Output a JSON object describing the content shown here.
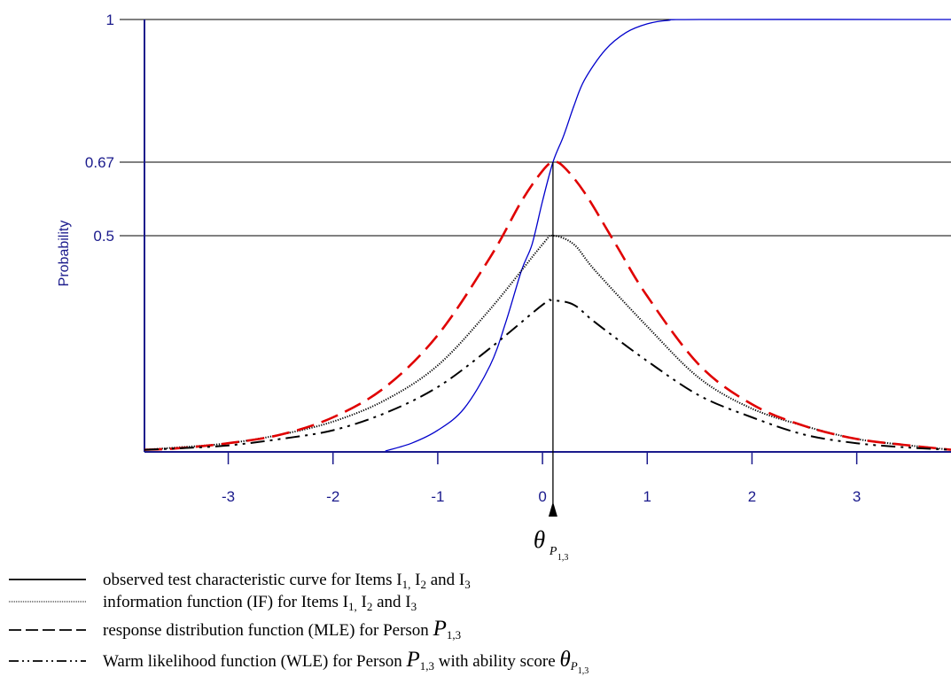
{
  "chart_data": {
    "type": "line",
    "ylabel": "Probability",
    "xlim": [
      -3.8,
      3.9
    ],
    "ylim": [
      0,
      1
    ],
    "x_ticks": [
      -3,
      -2,
      -1,
      0,
      1,
      2,
      3
    ],
    "x_tick_labels": [
      "-3",
      "-2",
      "-1",
      "0",
      "1",
      "2",
      "3"
    ],
    "y_tick_labels": [
      {
        "value": 0.5,
        "label": "0.5"
      },
      {
        "value": 0.67,
        "label": "0.67"
      },
      {
        "value": 1,
        "label": "1"
      }
    ],
    "reference_lines_y": [
      0.5,
      0.67,
      1
    ],
    "theta_marker_x": 0.1,
    "theta_marker_label": "θ",
    "theta_marker_sub": "P",
    "theta_marker_subsub": "1,3",
    "grid": false,
    "series": [
      {
        "key": "tcc",
        "color": "#0000cc",
        "style": "solid",
        "x": [
          -1.5,
          -1.25,
          -1.0,
          -0.75,
          -0.5,
          -0.35,
          -0.2,
          -0.1,
          0.0,
          0.1,
          0.2,
          0.3,
          0.4,
          0.6,
          0.8,
          1.0,
          1.2,
          1.5,
          3.9
        ],
        "y": [
          0.0,
          0.02,
          0.05,
          0.1,
          0.2,
          0.3,
          0.42,
          0.48,
          0.58,
          0.67,
          0.73,
          0.8,
          0.86,
          0.93,
          0.97,
          0.99,
          0.998,
          1.0,
          1.0
        ]
      },
      {
        "key": "if",
        "color": "#000000",
        "style": "dotted",
        "x": [
          -3.8,
          -3.5,
          -3.0,
          -2.5,
          -2.0,
          -1.5,
          -1.0,
          -0.5,
          0.0,
          0.1,
          0.3,
          0.5,
          1.0,
          1.5,
          2.0,
          2.5,
          3.0,
          3.5,
          3.9
        ],
        "y": [
          0.005,
          0.01,
          0.02,
          0.04,
          0.07,
          0.12,
          0.2,
          0.33,
          0.48,
          0.5,
          0.48,
          0.42,
          0.29,
          0.17,
          0.1,
          0.06,
          0.03,
          0.015,
          0.005
        ]
      },
      {
        "key": "mle",
        "color": "#e00000",
        "style": "dashed",
        "x": [
          -3.8,
          -3.5,
          -3.0,
          -2.5,
          -2.0,
          -1.5,
          -1.0,
          -0.5,
          -0.2,
          0.0,
          0.1,
          0.2,
          0.4,
          0.7,
          1.0,
          1.5,
          2.0,
          2.5,
          3.0,
          3.5,
          3.9
        ],
        "y": [
          0.005,
          0.008,
          0.02,
          0.04,
          0.08,
          0.15,
          0.27,
          0.45,
          0.58,
          0.65,
          0.67,
          0.66,
          0.6,
          0.48,
          0.36,
          0.2,
          0.11,
          0.06,
          0.03,
          0.015,
          0.005
        ]
      },
      {
        "key": "wle",
        "color": "#000000",
        "style": "dashdotdot",
        "x": [
          -3.8,
          -3.5,
          -3.0,
          -2.5,
          -2.0,
          -1.5,
          -1.0,
          -0.5,
          0.0,
          0.1,
          0.3,
          0.5,
          1.0,
          1.5,
          2.0,
          2.5,
          3.0,
          3.5,
          3.9
        ],
        "y": [
          0.005,
          0.008,
          0.015,
          0.03,
          0.05,
          0.09,
          0.15,
          0.24,
          0.34,
          0.35,
          0.34,
          0.3,
          0.21,
          0.13,
          0.08,
          0.04,
          0.02,
          0.01,
          0.005
        ]
      }
    ]
  },
  "legend": {
    "items": [
      {
        "style": "solid",
        "parts": [
          {
            "t": "observed test characteristic curve for Items I"
          },
          {
            "t": "1,",
            "sub": true
          },
          {
            "t": " I"
          },
          {
            "t": "2",
            "sub": true
          },
          {
            "t": " and I"
          },
          {
            "t": "3",
            "sub": true
          }
        ]
      },
      {
        "style": "dotted",
        "parts": [
          {
            "t": "information function (IF) for Items I"
          },
          {
            "t": "1,",
            "sub": true
          },
          {
            "t": " I"
          },
          {
            "t": "2",
            "sub": true
          },
          {
            "t": " and I"
          },
          {
            "t": "3",
            "sub": true
          }
        ]
      },
      {
        "style": "dashed",
        "parts": [
          {
            "t": "response distribution function (MLE) for Person "
          },
          {
            "t": "P",
            "big": true
          },
          {
            "t": "1,3",
            "sub": true
          }
        ]
      },
      {
        "style": "dashdotdot",
        "parts": [
          {
            "t": "Warm likelihood function (WLE) for Person "
          },
          {
            "t": "P",
            "big": true
          },
          {
            "t": "1,3",
            "sub": true
          },
          {
            "t": " with ability score "
          },
          {
            "t": "θ",
            "big": true
          },
          {
            "t": "P",
            "sub": true
          },
          {
            "t": "1,3",
            "subsub": true
          }
        ]
      }
    ]
  }
}
